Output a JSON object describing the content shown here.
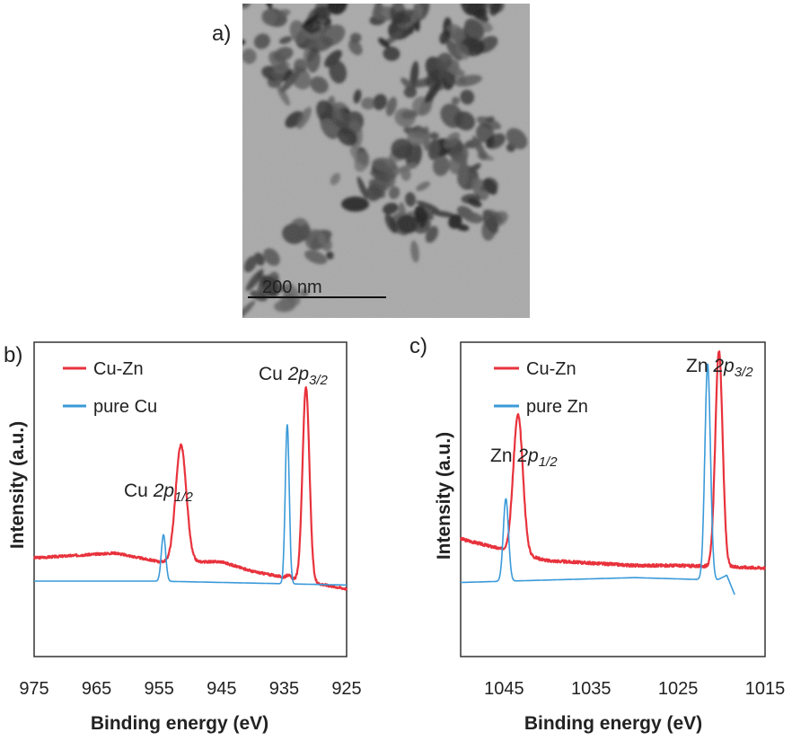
{
  "colors": {
    "cu_zn": "#e8323c",
    "pure": "#3a9ad9",
    "frame": "#333333"
  },
  "panel_a": {
    "label": "a)",
    "scale_bar_label": "200  nm",
    "image_kind": "TEM micrograph of aggregated particles"
  },
  "chart_data": [
    {
      "panel": "b)",
      "type": "line",
      "xlabel": "Binding energy (eV)",
      "ylabel": "Intensity (a.u.)",
      "xlim": [
        975,
        925
      ],
      "x_reversed": true,
      "x_ticks": [
        "975",
        "965",
        "955",
        "945",
        "935",
        "925"
      ],
      "y_ticks_shown": false,
      "grid": false,
      "legend_position": "top-left",
      "annotations": [
        {
          "base": "Cu ",
          "ital": "2p",
          "sub": "1/2",
          "x": 951.5
        },
        {
          "base": "Cu ",
          "ital": "2p",
          "sub": "3/2",
          "x": 931.5
        }
      ],
      "series": [
        {
          "name": "Cu-Zn",
          "color": "#e8323c",
          "baseline": [
            [
              975,
              0.18
            ],
            [
              962,
              0.205
            ],
            [
              955,
              0.16
            ],
            [
              945,
              0.16
            ],
            [
              940,
              0.11
            ],
            [
              925,
              0.02
            ]
          ],
          "peaks": [
            {
              "x": 951.5,
              "height": 0.6,
              "width": 0.85
            },
            {
              "x": 931.5,
              "height": 1.0,
              "width": 0.55
            },
            {
              "x": 934.3,
              "height": 0.015,
              "width": 0.35
            }
          ]
        },
        {
          "name": "pure Cu",
          "color": "#3a9ad9",
          "baseline": [
            [
              975,
              0.06
            ],
            [
              955,
              0.06
            ],
            [
              925,
              0.04
            ]
          ],
          "peaks": [
            {
              "x": 954.3,
              "height": 0.24,
              "width": 0.35
            },
            {
              "x": 934.5,
              "height": 0.82,
              "width": 0.32
            }
          ]
        }
      ]
    },
    {
      "panel": "c)",
      "type": "line",
      "xlabel": "Binding energy (eV)",
      "ylabel": "Intensity (a.u.)",
      "xlim": [
        1050,
        1015
      ],
      "x_reversed": true,
      "x_ticks": [
        "1045",
        "1035",
        "1025",
        "1015"
      ],
      "y_ticks_shown": false,
      "grid": false,
      "legend_position": "top-left",
      "annotations": [
        {
          "base": "Zn ",
          "ital": "2p",
          "sub": "1/2",
          "x": 1043.4
        },
        {
          "base": "Zn ",
          "ital": "2p",
          "sub": "3/2",
          "x": 1020.3
        }
      ],
      "series": [
        {
          "name": "Cu-Zn",
          "color": "#e8323c",
          "x_range": [
            1050,
            1015
          ],
          "baseline": [
            [
              1050,
              0.23
            ],
            [
              1040,
              0.14
            ],
            [
              1030,
              0.12
            ],
            [
              1025,
              0.12
            ],
            [
              1015,
              0.11
            ]
          ],
          "peaks": [
            {
              "x": 1043.4,
              "height": 0.57,
              "width": 0.55
            },
            {
              "x": 1020.3,
              "height": 0.89,
              "width": 0.42
            }
          ]
        },
        {
          "name": "pure Zn",
          "color": "#3a9ad9",
          "x_range": [
            1050,
            1018.5
          ],
          "baseline": [
            [
              1050,
              0.05
            ],
            [
              1030,
              0.07
            ],
            [
              1020.5,
              0.06
            ],
            [
              1019.4,
              0.08
            ],
            [
              1018.5,
              0.0
            ]
          ],
          "peaks": [
            {
              "x": 1044.8,
              "height": 0.34,
              "width": 0.3
            },
            {
              "x": 1021.6,
              "height": 0.89,
              "width": 0.32
            }
          ]
        }
      ]
    }
  ]
}
